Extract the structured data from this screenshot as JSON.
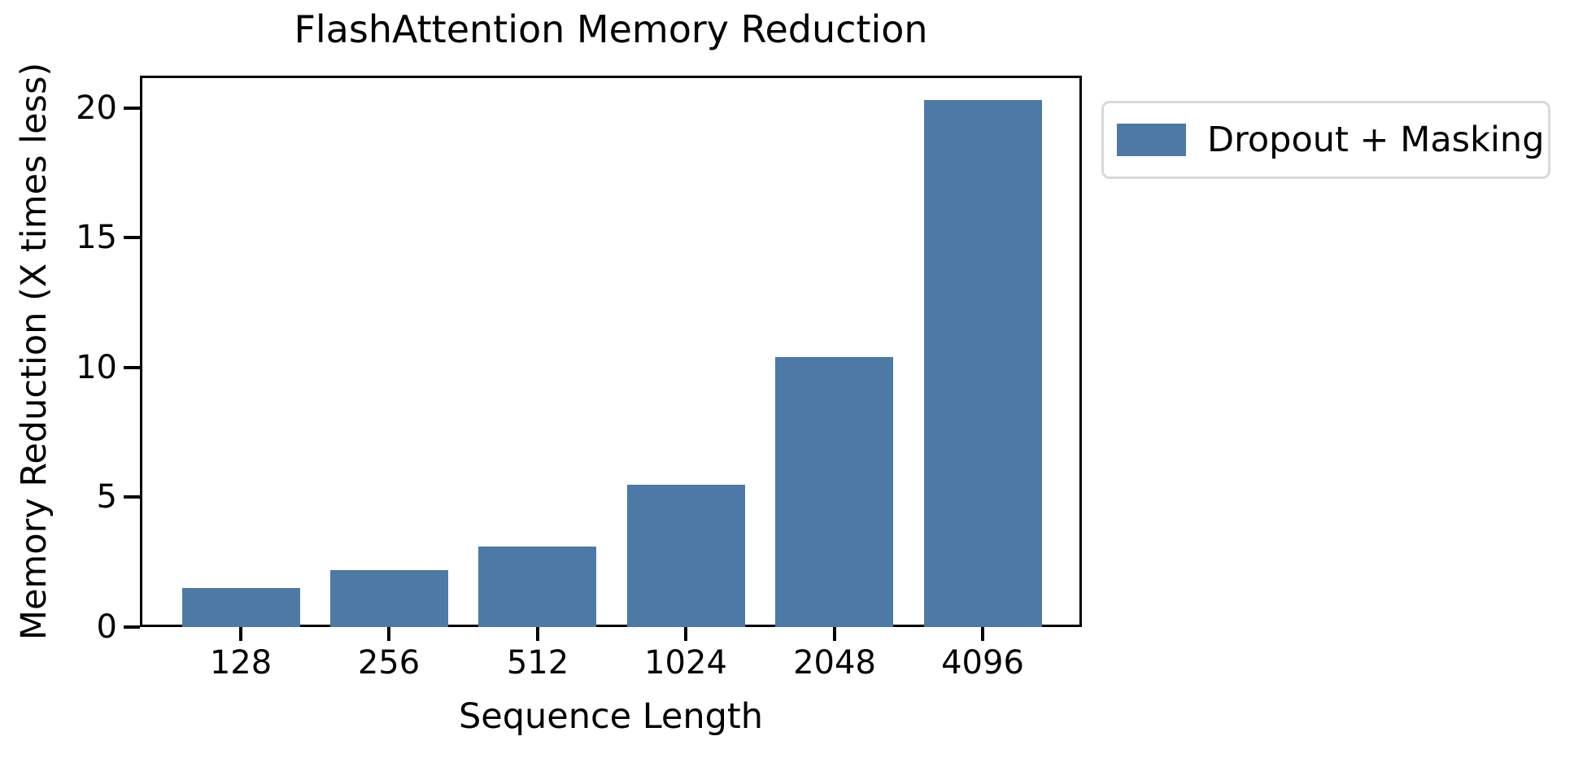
{
  "figure": {
    "background": "#ffffff",
    "axis_color": "#000000"
  },
  "legend": {
    "label": "Dropout + Masking",
    "swatch_color": "#4d79a7",
    "border_color": "#d9d9d9",
    "location": "outside-upper-right"
  },
  "chart_data": {
    "type": "bar",
    "title": "FlashAttention Memory Reduction",
    "xlabel": "Sequence Length",
    "ylabel": "Memory Reduction (X times less)",
    "categories": [
      "128",
      "256",
      "512",
      "1024",
      "2048",
      "4096"
    ],
    "series": [
      {
        "name": "Dropout + Masking",
        "values": [
          1.5,
          2.2,
          3.1,
          5.5,
          10.4,
          20.3
        ],
        "color": "#4d79a7"
      }
    ],
    "yticks": [
      0,
      5,
      10,
      15,
      20
    ],
    "ylim": [
      0,
      21.25
    ],
    "grid": false,
    "legend_position": "upper right, outside plot area"
  }
}
